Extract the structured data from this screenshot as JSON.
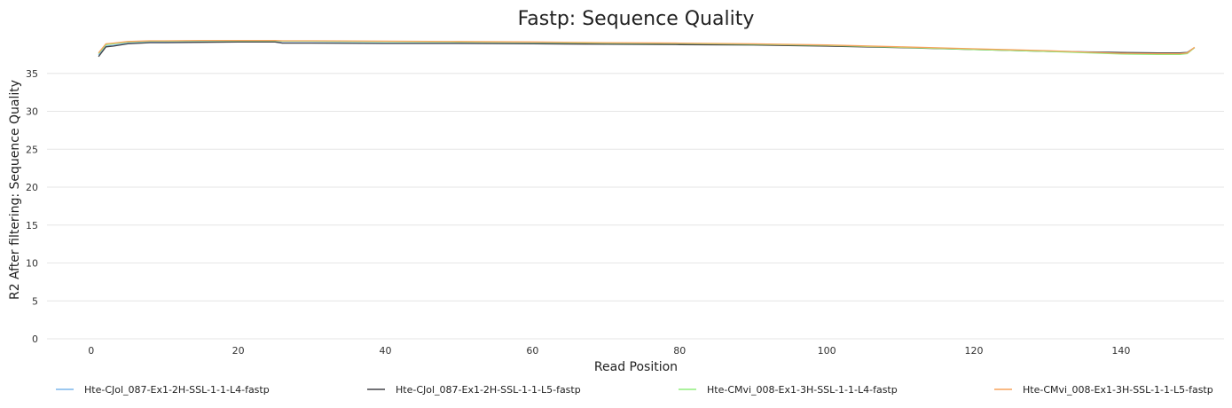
{
  "chart_data": {
    "type": "line",
    "title": "Fastp: Sequence Quality",
    "xlabel": "Read Position",
    "ylabel": "R2 After filtering: Sequence Quality",
    "xlim": [
      -6,
      154
    ],
    "ylim": [
      0,
      40
    ],
    "xticks": [
      0,
      20,
      40,
      60,
      80,
      100,
      120,
      140
    ],
    "yticks": [
      0,
      5,
      10,
      15,
      20,
      25,
      30,
      35
    ],
    "grid": true,
    "legend_position": "bottom",
    "series": [
      {
        "name": "Hte-CJol_087-Ex1-2H-SSL-1-1-L4-fastp",
        "color": "#7cb5ec",
        "points": [
          [
            1,
            37.4
          ],
          [
            2,
            38.6
          ],
          [
            3,
            38.7
          ],
          [
            5,
            39.0
          ],
          [
            8,
            39.1
          ],
          [
            10,
            39.1
          ],
          [
            15,
            39.2
          ],
          [
            20,
            39.2
          ],
          [
            25,
            39.2
          ],
          [
            26,
            39.05
          ],
          [
            30,
            39.05
          ],
          [
            40,
            39.0
          ],
          [
            50,
            39.0
          ],
          [
            60,
            38.95
          ],
          [
            70,
            38.9
          ],
          [
            80,
            38.85
          ],
          [
            90,
            38.8
          ],
          [
            100,
            38.65
          ],
          [
            110,
            38.45
          ],
          [
            120,
            38.2
          ],
          [
            130,
            37.95
          ],
          [
            140,
            37.75
          ],
          [
            145,
            37.7
          ],
          [
            148,
            37.7
          ],
          [
            149,
            37.75
          ],
          [
            150,
            38.4
          ]
        ]
      },
      {
        "name": "Hte-CJol_087-Ex1-2H-SSL-1-1-L5-fastp",
        "color": "#434348",
        "points": [
          [
            1,
            37.2
          ],
          [
            2,
            38.5
          ],
          [
            3,
            38.6
          ],
          [
            5,
            38.9
          ],
          [
            8,
            39.05
          ],
          [
            10,
            39.05
          ],
          [
            15,
            39.1
          ],
          [
            20,
            39.15
          ],
          [
            25,
            39.15
          ],
          [
            26,
            39.0
          ],
          [
            30,
            39.0
          ],
          [
            40,
            38.95
          ],
          [
            50,
            38.95
          ],
          [
            60,
            38.9
          ],
          [
            70,
            38.85
          ],
          [
            80,
            38.8
          ],
          [
            90,
            38.75
          ],
          [
            100,
            38.6
          ],
          [
            110,
            38.4
          ],
          [
            120,
            38.15
          ],
          [
            130,
            37.9
          ],
          [
            140,
            37.75
          ],
          [
            145,
            37.7
          ],
          [
            148,
            37.7
          ],
          [
            149,
            37.75
          ],
          [
            150,
            38.4
          ]
        ]
      },
      {
        "name": "Hte-CMvi_008-Ex1-3H-SSL-1-1-L4-fastp",
        "color": "#90ed7d",
        "points": [
          [
            1,
            37.6
          ],
          [
            2,
            38.8
          ],
          [
            3,
            38.9
          ],
          [
            5,
            39.15
          ],
          [
            8,
            39.25
          ],
          [
            10,
            39.25
          ],
          [
            15,
            39.3
          ],
          [
            20,
            39.3
          ],
          [
            25,
            39.3
          ],
          [
            26,
            39.25
          ],
          [
            30,
            39.25
          ],
          [
            40,
            39.2
          ],
          [
            50,
            39.15
          ],
          [
            60,
            39.1
          ],
          [
            70,
            39.0
          ],
          [
            80,
            38.95
          ],
          [
            90,
            38.85
          ],
          [
            100,
            38.7
          ],
          [
            110,
            38.45
          ],
          [
            120,
            38.15
          ],
          [
            130,
            37.9
          ],
          [
            140,
            37.55
          ],
          [
            145,
            37.5
          ],
          [
            148,
            37.5
          ],
          [
            149,
            37.6
          ],
          [
            150,
            38.4
          ]
        ]
      },
      {
        "name": "Hte-CMvi_008-Ex1-3H-SSL-1-1-L5-fastp",
        "color": "#f7a35c",
        "points": [
          [
            1,
            37.7
          ],
          [
            2,
            38.9
          ],
          [
            3,
            39.0
          ],
          [
            5,
            39.2
          ],
          [
            8,
            39.3
          ],
          [
            10,
            39.3
          ],
          [
            15,
            39.35
          ],
          [
            20,
            39.35
          ],
          [
            25,
            39.35
          ],
          [
            26,
            39.3
          ],
          [
            30,
            39.3
          ],
          [
            40,
            39.25
          ],
          [
            50,
            39.2
          ],
          [
            60,
            39.15
          ],
          [
            70,
            39.05
          ],
          [
            80,
            39.0
          ],
          [
            90,
            38.9
          ],
          [
            100,
            38.75
          ],
          [
            110,
            38.5
          ],
          [
            120,
            38.25
          ],
          [
            130,
            38.0
          ],
          [
            140,
            37.65
          ],
          [
            145,
            37.6
          ],
          [
            148,
            37.6
          ],
          [
            149,
            37.7
          ],
          [
            150,
            38.45
          ]
        ]
      }
    ]
  }
}
